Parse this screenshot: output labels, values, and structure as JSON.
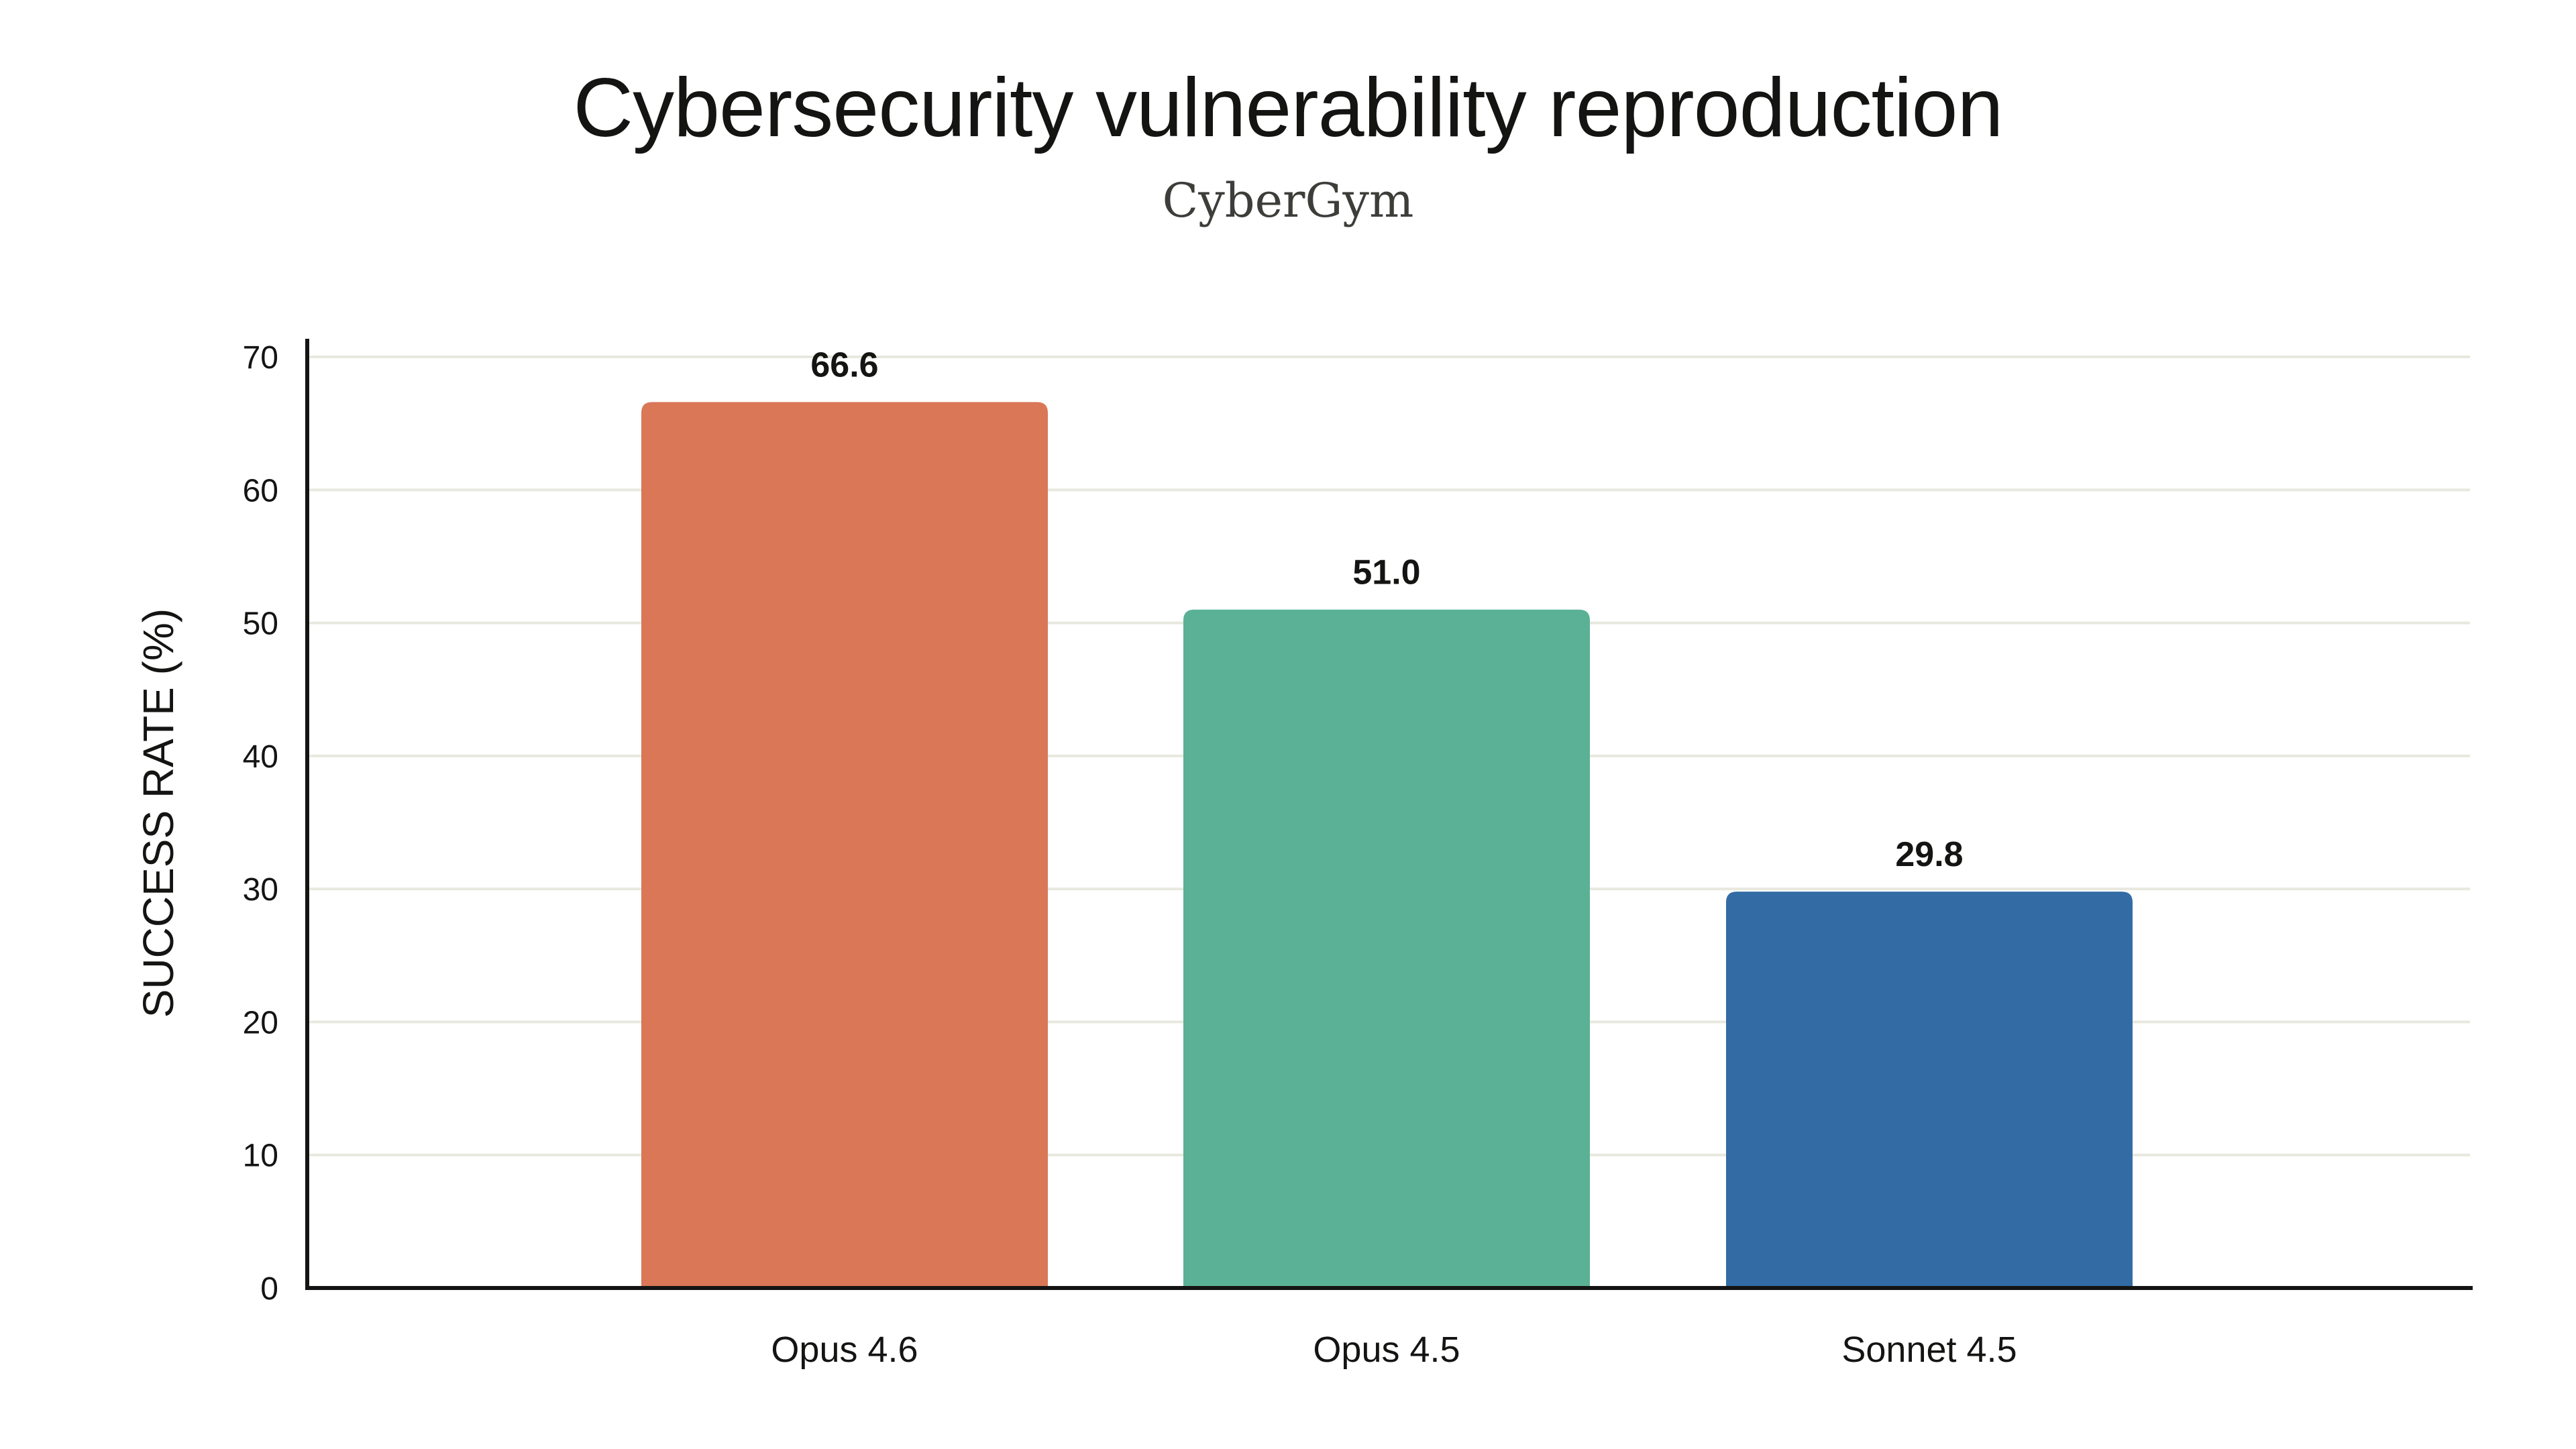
{
  "chart_data": {
    "type": "bar",
    "title": "Cybersecurity vulnerability reproduction",
    "subtitle": "CyberGym",
    "xlabel": "",
    "ylabel": "SUCCESS RATE (%)",
    "ylim": [
      0,
      70
    ],
    "yticks": [
      0,
      10,
      20,
      30,
      40,
      50,
      60,
      70
    ],
    "grid": true,
    "categories": [
      "Opus 4.6",
      "Opus 4.5",
      "Sonnet 4.5"
    ],
    "values": [
      66.6,
      51.0,
      29.8
    ],
    "data_labels": [
      "66.6",
      "51.0",
      "29.8"
    ],
    "colors": [
      "#D97757",
      "#5AB195",
      "#336CA4"
    ]
  }
}
